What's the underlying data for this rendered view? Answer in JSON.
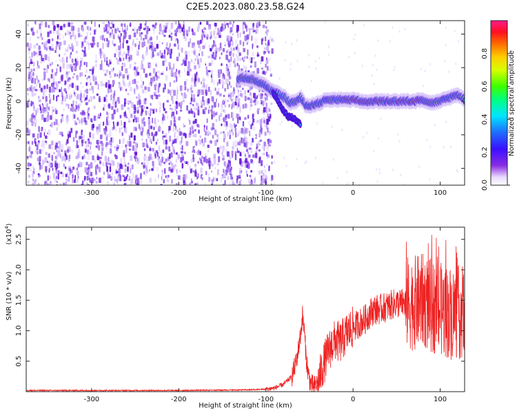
{
  "title": "C2E5.2023.080.23.58.G24",
  "colors": {
    "snr_line": "#ee2222",
    "spec_purple": "#6a0dd6",
    "spec_light": "#c9b0f2"
  },
  "chart_data": [
    {
      "type": "heatmap",
      "title": "C2E5.2023.080.23.58.G24",
      "xlabel": "Height of straight line (km)",
      "ylabel": "Frequency (Hz)",
      "xlim": [
        -375,
        128
      ],
      "ylim": [
        -50,
        48
      ],
      "xticks": [
        -300,
        -200,
        -100,
        0,
        100
      ],
      "xtick_labels": [
        "-300",
        "-200",
        "-100",
        "0",
        "100"
      ],
      "yticks": [
        -40,
        -20,
        0,
        20,
        40
      ],
      "ytick_labels": [
        "-40",
        "-20",
        "0",
        "20",
        "40"
      ],
      "noise_region_x": [
        -375,
        -100
      ],
      "signal_track": {
        "x": [
          -132,
          -125,
          -115,
          -107,
          -100,
          -92,
          -85,
          -78,
          -72,
          -65,
          -60,
          -55,
          -50,
          -45,
          -38,
          -30,
          -20,
          -10,
          0,
          10,
          20,
          30,
          40,
          50,
          60,
          70,
          80,
          90,
          100,
          110,
          120,
          128
        ],
        "y": [
          13,
          14,
          13,
          11,
          9,
          6,
          4,
          2,
          -1,
          0,
          2,
          -2,
          -3,
          -2,
          -1,
          1,
          1,
          1,
          1,
          0,
          0,
          0,
          0,
          0,
          0,
          0,
          1,
          -1,
          0,
          2,
          4,
          1
        ]
      },
      "branch_track": {
        "x": [
          -92,
          -88,
          -82,
          -75,
          -68,
          -62,
          -60
        ],
        "y": [
          5,
          2,
          -4,
          -9,
          -10,
          -13,
          -14
        ]
      },
      "peak_region_x": [
        -10,
        80
      ],
      "colorbar": {
        "label": "Normalized spectral amplitude",
        "range": [
          0,
          1
        ],
        "ticks": [
          0.0,
          0.2,
          0.4,
          0.6,
          0.8
        ],
        "tick_labels": [
          "0.0",
          "0.2",
          "0.4",
          "0.6",
          "0.8"
        ]
      },
      "grid": false
    },
    {
      "type": "line",
      "xlabel": "Height of straight line (km)",
      "ylabel": "SNR (10 * v/v)",
      "y_scale_label": "(x10",
      "y_scale_exp": "4",
      "xlim": [
        -375,
        128
      ],
      "ylim": [
        0,
        2.7
      ],
      "xticks": [
        -300,
        -200,
        -100,
        0,
        100
      ],
      "xtick_labels": [
        "-300",
        "-200",
        "-100",
        "0",
        "100"
      ],
      "yticks": [
        0.5,
        1.0,
        1.5,
        2.0,
        2.5
      ],
      "ytick_labels": [
        "0.5",
        "1.0",
        "1.5",
        "2.0",
        "2.5"
      ],
      "grid": false,
      "series": [
        {
          "x": [
            -375,
            -300,
            -200,
            -120,
            -100,
            -90,
            -80,
            -70,
            -65,
            -60,
            -58,
            -56,
            -54,
            -52,
            -50,
            -48,
            -45,
            -40,
            -35,
            -30,
            -25,
            -20,
            -15,
            -10,
            -5,
            0,
            5,
            10,
            15,
            20,
            25,
            30,
            40,
            50,
            60,
            70,
            80,
            90,
            100,
            110,
            120,
            128
          ],
          "y": [
            0.02,
            0.02,
            0.02,
            0.03,
            0.04,
            0.06,
            0.12,
            0.25,
            0.5,
            0.95,
            1.25,
            1.0,
            0.6,
            0.35,
            0.2,
            0.12,
            0.08,
            0.15,
            0.4,
            0.6,
            0.75,
            0.85,
            0.8,
            0.9,
            1.0,
            1.05,
            1.1,
            1.15,
            1.2,
            1.3,
            1.35,
            1.35,
            1.4,
            1.45,
            1.45,
            1.45,
            1.5,
            1.4,
            1.35,
            1.3,
            1.3,
            1.3
          ]
        }
      ]
    }
  ]
}
